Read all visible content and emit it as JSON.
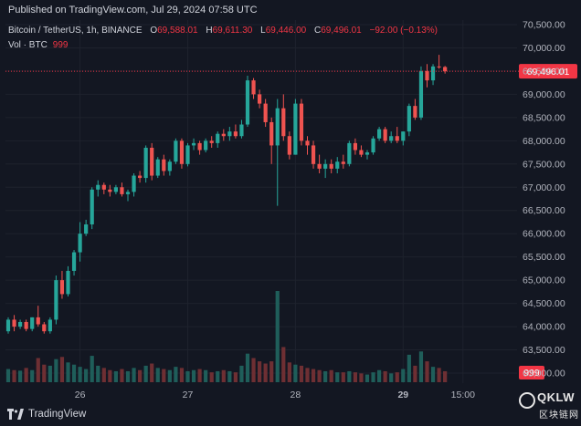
{
  "header": {
    "published": "Published on TradingView.com, Jul 29, 2024 07:58 UTC"
  },
  "legend": {
    "symbol": "Bitcoin / TetherUS, 1h, BINANCE",
    "o_label": "O",
    "o_value": "69,588.01",
    "h_label": "H",
    "h_value": "69,611.30",
    "l_label": "L",
    "l_value": "69,446.00",
    "c_label": "C",
    "c_value": "69,496.01",
    "change": "−92.00 (−0.13%)",
    "vol_label": "Vol · BTC",
    "vol_value": "999"
  },
  "footer": {
    "brand": "TradingView"
  },
  "watermark": {
    "text": "QKLW",
    "sub": "区块链网"
  },
  "colors": {
    "background": "#131722",
    "up": "#26a69a",
    "down": "#ef5350",
    "vol_up": "#1f5e5a",
    "vol_down": "#6e2f33",
    "price_line": "#f23645",
    "grid": "#1e222d",
    "axis_text": "#b2b5be"
  },
  "chart_data": {
    "type": "candlestick",
    "symbol": "Bitcoin / TetherUS",
    "interval": "1h",
    "exchange": "BINANCE",
    "y_ticks": [
      "63,000.00",
      "63,500.00",
      "64,000.00",
      "64,500.00",
      "65,000.00",
      "65,500.00",
      "66,000.00",
      "66,500.00",
      "67,000.00",
      "67,500.00",
      "68,000.00",
      "68,500.00",
      "69,000.00",
      "69,500.00",
      "70,000.00",
      "70,500.00"
    ],
    "ylim": [
      63000,
      70500
    ],
    "x_labels": [
      {
        "text": "26",
        "index": 12
      },
      {
        "text": "27",
        "index": 30
      },
      {
        "text": "28",
        "index": 48
      },
      {
        "text": "29",
        "index": 66
      },
      {
        "text": "15:00",
        "index": 76
      }
    ],
    "last_price": "69,496.01",
    "last_price_value": 69496,
    "last_volume": "999",
    "grid": true,
    "candles": [
      {
        "o": 63900,
        "h": 64200,
        "l": 63850,
        "c": 64150,
        "v": 1200
      },
      {
        "o": 64150,
        "h": 64250,
        "l": 63900,
        "c": 64000,
        "v": 1100
      },
      {
        "o": 64000,
        "h": 64150,
        "l": 63950,
        "c": 64100,
        "v": 1050
      },
      {
        "o": 64100,
        "h": 64150,
        "l": 63900,
        "c": 63950,
        "v": 1300
      },
      {
        "o": 63950,
        "h": 64200,
        "l": 63900,
        "c": 64200,
        "v": 1100
      },
      {
        "o": 64200,
        "h": 64450,
        "l": 64000,
        "c": 64050,
        "v": 2200
      },
      {
        "o": 64050,
        "h": 64100,
        "l": 63850,
        "c": 63900,
        "v": 1600
      },
      {
        "o": 63900,
        "h": 64200,
        "l": 63850,
        "c": 64150,
        "v": 1500
      },
      {
        "o": 64150,
        "h": 65100,
        "l": 64050,
        "c": 65000,
        "v": 2100
      },
      {
        "o": 65000,
        "h": 65200,
        "l": 64600,
        "c": 64700,
        "v": 2300
      },
      {
        "o": 64700,
        "h": 65300,
        "l": 64650,
        "c": 65200,
        "v": 1800
      },
      {
        "o": 65200,
        "h": 65650,
        "l": 65100,
        "c": 65600,
        "v": 1600
      },
      {
        "o": 65600,
        "h": 66250,
        "l": 65400,
        "c": 66000,
        "v": 1400
      },
      {
        "o": 66000,
        "h": 66300,
        "l": 65950,
        "c": 66200,
        "v": 1200
      },
      {
        "o": 66200,
        "h": 67000,
        "l": 66100,
        "c": 66950,
        "v": 2400
      },
      {
        "o": 66950,
        "h": 67150,
        "l": 66800,
        "c": 67050,
        "v": 1500
      },
      {
        "o": 67050,
        "h": 67100,
        "l": 66850,
        "c": 66950,
        "v": 1300
      },
      {
        "o": 66950,
        "h": 67050,
        "l": 66800,
        "c": 66900,
        "v": 1100
      },
      {
        "o": 66900,
        "h": 67050,
        "l": 66850,
        "c": 67000,
        "v": 1000
      },
      {
        "o": 67000,
        "h": 67100,
        "l": 66800,
        "c": 66850,
        "v": 1200
      },
      {
        "o": 66850,
        "h": 66950,
        "l": 66700,
        "c": 66900,
        "v": 1000
      },
      {
        "o": 66900,
        "h": 67300,
        "l": 66800,
        "c": 67250,
        "v": 1300
      },
      {
        "o": 67250,
        "h": 67350,
        "l": 67100,
        "c": 67200,
        "v": 1100
      },
      {
        "o": 67200,
        "h": 67900,
        "l": 67100,
        "c": 67850,
        "v": 1500
      },
      {
        "o": 67850,
        "h": 67950,
        "l": 67150,
        "c": 67250,
        "v": 1700
      },
      {
        "o": 67250,
        "h": 67650,
        "l": 67200,
        "c": 67600,
        "v": 1300
      },
      {
        "o": 67600,
        "h": 67700,
        "l": 67250,
        "c": 67350,
        "v": 1200
      },
      {
        "o": 67350,
        "h": 67600,
        "l": 67250,
        "c": 67550,
        "v": 1100
      },
      {
        "o": 67550,
        "h": 68050,
        "l": 67500,
        "c": 68000,
        "v": 1400
      },
      {
        "o": 68000,
        "h": 68050,
        "l": 67400,
        "c": 67500,
        "v": 1300
      },
      {
        "o": 67500,
        "h": 67950,
        "l": 67450,
        "c": 67900,
        "v": 1000
      },
      {
        "o": 67900,
        "h": 68050,
        "l": 67800,
        "c": 67950,
        "v": 1100
      },
      {
        "o": 67950,
        "h": 68000,
        "l": 67700,
        "c": 67800,
        "v": 1200
      },
      {
        "o": 67800,
        "h": 68050,
        "l": 67750,
        "c": 68000,
        "v": 1100
      },
      {
        "o": 68000,
        "h": 68100,
        "l": 67850,
        "c": 67950,
        "v": 900
      },
      {
        "o": 67950,
        "h": 68200,
        "l": 67850,
        "c": 68150,
        "v": 1000
      },
      {
        "o": 68150,
        "h": 68250,
        "l": 68000,
        "c": 68100,
        "v": 1100
      },
      {
        "o": 68100,
        "h": 68300,
        "l": 68000,
        "c": 68200,
        "v": 1000
      },
      {
        "o": 68200,
        "h": 68350,
        "l": 68050,
        "c": 68100,
        "v": 900
      },
      {
        "o": 68100,
        "h": 68450,
        "l": 68050,
        "c": 68350,
        "v": 1500
      },
      {
        "o": 68350,
        "h": 69400,
        "l": 68300,
        "c": 69300,
        "v": 2600
      },
      {
        "o": 69300,
        "h": 69350,
        "l": 68900,
        "c": 69000,
        "v": 2200
      },
      {
        "o": 69000,
        "h": 69100,
        "l": 68700,
        "c": 68800,
        "v": 1900
      },
      {
        "o": 68800,
        "h": 68900,
        "l": 68300,
        "c": 68400,
        "v": 1700
      },
      {
        "o": 68400,
        "h": 68500,
        "l": 67500,
        "c": 67900,
        "v": 1900
      },
      {
        "o": 67900,
        "h": 68900,
        "l": 66600,
        "c": 68700,
        "v": 8300
      },
      {
        "o": 68700,
        "h": 69000,
        "l": 68000,
        "c": 68100,
        "v": 3200
      },
      {
        "o": 68100,
        "h": 68200,
        "l": 67600,
        "c": 67700,
        "v": 1800
      },
      {
        "o": 67700,
        "h": 68900,
        "l": 67700,
        "c": 68800,
        "v": 1600
      },
      {
        "o": 68800,
        "h": 68900,
        "l": 67900,
        "c": 68000,
        "v": 1500
      },
      {
        "o": 68000,
        "h": 68100,
        "l": 67700,
        "c": 67900,
        "v": 1300
      },
      {
        "o": 67900,
        "h": 68000,
        "l": 67400,
        "c": 67500,
        "v": 1200
      },
      {
        "o": 67500,
        "h": 67700,
        "l": 67300,
        "c": 67400,
        "v": 1100
      },
      {
        "o": 67400,
        "h": 67600,
        "l": 67200,
        "c": 67500,
        "v": 1000
      },
      {
        "o": 67500,
        "h": 67600,
        "l": 67300,
        "c": 67400,
        "v": 1100
      },
      {
        "o": 67400,
        "h": 67650,
        "l": 67300,
        "c": 67550,
        "v": 900
      },
      {
        "o": 67550,
        "h": 67700,
        "l": 67400,
        "c": 67500,
        "v": 900
      },
      {
        "o": 67500,
        "h": 68000,
        "l": 67450,
        "c": 67950,
        "v": 1000
      },
      {
        "o": 67950,
        "h": 68050,
        "l": 67700,
        "c": 67800,
        "v": 900
      },
      {
        "o": 67800,
        "h": 67900,
        "l": 67650,
        "c": 67700,
        "v": 800
      },
      {
        "o": 67700,
        "h": 67800,
        "l": 67600,
        "c": 67750,
        "v": 700
      },
      {
        "o": 67750,
        "h": 68100,
        "l": 67700,
        "c": 68050,
        "v": 900
      },
      {
        "o": 68050,
        "h": 68300,
        "l": 68000,
        "c": 68250,
        "v": 1100
      },
      {
        "o": 68250,
        "h": 68300,
        "l": 67950,
        "c": 68000,
        "v": 1000
      },
      {
        "o": 68000,
        "h": 68200,
        "l": 67950,
        "c": 68100,
        "v": 800
      },
      {
        "o": 68100,
        "h": 68300,
        "l": 67950,
        "c": 68000,
        "v": 900
      },
      {
        "o": 68000,
        "h": 68200,
        "l": 67900,
        "c": 68200,
        "v": 1200
      },
      {
        "o": 68200,
        "h": 68800,
        "l": 68100,
        "c": 68750,
        "v": 2500
      },
      {
        "o": 68750,
        "h": 68900,
        "l": 68450,
        "c": 68500,
        "v": 1500
      },
      {
        "o": 68500,
        "h": 69600,
        "l": 68450,
        "c": 69500,
        "v": 2800
      },
      {
        "o": 69500,
        "h": 69650,
        "l": 69150,
        "c": 69300,
        "v": 1900
      },
      {
        "o": 69300,
        "h": 69650,
        "l": 69200,
        "c": 69600,
        "v": 1400
      },
      {
        "o": 69600,
        "h": 69850,
        "l": 69550,
        "c": 69588,
        "v": 1300
      },
      {
        "o": 69588,
        "h": 69611,
        "l": 69446,
        "c": 69496,
        "v": 999
      }
    ]
  }
}
